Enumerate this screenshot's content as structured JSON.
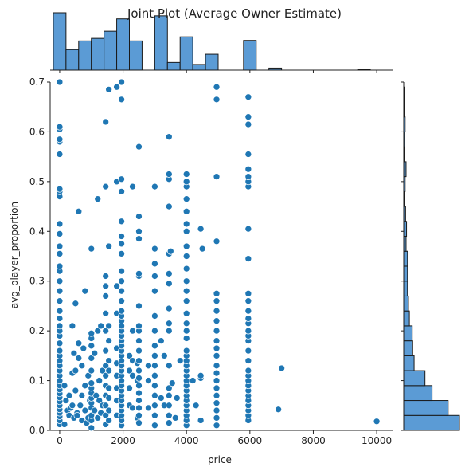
{
  "chart_data": {
    "type": "scatter",
    "title": "Joint Plot (Average Owner Estimate)",
    "xlabel": "price",
    "ylabel": "avg_player_proportion",
    "xlim": [
      -300,
      10500
    ],
    "ylim": [
      0,
      0.7
    ],
    "xticks": [
      0,
      2000,
      4000,
      6000,
      8000,
      10000
    ],
    "yticks": [
      0.0,
      0.1,
      0.2,
      0.3,
      0.4,
      0.5,
      0.6,
      0.7
    ],
    "xtick_labels": [
      "0",
      "2000",
      "4000",
      "6000",
      "8000",
      "10000"
    ],
    "ytick_labels": [
      "0.0",
      "0.1",
      "0.2",
      "0.3",
      "0.4",
      "0.5",
      "0.6",
      "0.7"
    ],
    "grid": false,
    "colors": {
      "points": "#1f77b4",
      "hist": "#5b9bd5",
      "hist_edge": "#1a1a1a"
    },
    "points": [
      [
        0,
        0.012
      ],
      [
        0,
        0.02
      ],
      [
        0,
        0.028
      ],
      [
        0,
        0.035
      ],
      [
        0,
        0.042
      ],
      [
        0,
        0.05
      ],
      [
        0,
        0.058
      ],
      [
        0,
        0.066
      ],
      [
        0,
        0.074
      ],
      [
        0,
        0.082
      ],
      [
        0,
        0.09
      ],
      [
        0,
        0.1
      ],
      [
        0,
        0.11
      ],
      [
        0,
        0.12
      ],
      [
        0,
        0.13
      ],
      [
        0,
        0.14
      ],
      [
        0,
        0.15
      ],
      [
        0,
        0.16
      ],
      [
        0,
        0.175
      ],
      [
        0,
        0.19
      ],
      [
        0,
        0.2
      ],
      [
        0,
        0.21
      ],
      [
        0,
        0.225
      ],
      [
        0,
        0.24
      ],
      [
        0,
        0.26
      ],
      [
        0,
        0.28
      ],
      [
        0,
        0.3
      ],
      [
        0,
        0.32
      ],
      [
        0,
        0.33
      ],
      [
        0,
        0.355
      ],
      [
        0,
        0.37
      ],
      [
        0,
        0.395
      ],
      [
        0,
        0.415
      ],
      [
        0,
        0.47
      ],
      [
        0,
        0.48
      ],
      [
        0,
        0.485
      ],
      [
        0,
        0.555
      ],
      [
        0,
        0.58
      ],
      [
        0,
        0.585
      ],
      [
        0,
        0.605
      ],
      [
        0,
        0.61
      ],
      [
        0,
        0.7
      ],
      [
        150,
        0.012
      ],
      [
        150,
        0.09
      ],
      [
        200,
        0.06
      ],
      [
        250,
        0.04
      ],
      [
        300,
        0.03
      ],
      [
        300,
        0.07
      ],
      [
        350,
        0.045
      ],
      [
        400,
        0.21
      ],
      [
        400,
        0.115
      ],
      [
        400,
        0.05
      ],
      [
        450,
        0.025
      ],
      [
        450,
        0.155
      ],
      [
        500,
        0.12
      ],
      [
        500,
        0.255
      ],
      [
        500,
        0.08
      ],
      [
        550,
        0.035
      ],
      [
        550,
        0.03
      ],
      [
        600,
        0.44
      ],
      [
        600,
        0.145
      ],
      [
        600,
        0.175
      ],
      [
        650,
        0.05
      ],
      [
        700,
        0.07
      ],
      [
        700,
        0.13
      ],
      [
        700,
        0.02
      ],
      [
        750,
        0.165
      ],
      [
        800,
        0.28
      ],
      [
        800,
        0.09
      ],
      [
        800,
        0.04
      ],
      [
        850,
        0.015
      ],
      [
        900,
        0.025
      ],
      [
        900,
        0.11
      ],
      [
        950,
        0.06
      ],
      [
        1000,
        0.005
      ],
      [
        1000,
        0.02
      ],
      [
        1000,
        0.03
      ],
      [
        1000,
        0.045
      ],
      [
        1000,
        0.055
      ],
      [
        1000,
        0.065
      ],
      [
        1000,
        0.075
      ],
      [
        1000,
        0.085
      ],
      [
        1000,
        0.095
      ],
      [
        1000,
        0.12
      ],
      [
        1000,
        0.145
      ],
      [
        1000,
        0.17
      ],
      [
        1000,
        0.185
      ],
      [
        1000,
        0.195
      ],
      [
        1000,
        0.365
      ],
      [
        1100,
        0.04
      ],
      [
        1100,
        0.155
      ],
      [
        1150,
        0.07
      ],
      [
        1200,
        0.025
      ],
      [
        1200,
        0.2
      ],
      [
        1200,
        0.465
      ],
      [
        1250,
        0.06
      ],
      [
        1250,
        0.1
      ],
      [
        1300,
        0.035
      ],
      [
        1300,
        0.21
      ],
      [
        1350,
        0.12
      ],
      [
        1350,
        0.05
      ],
      [
        1450,
        0.012
      ],
      [
        1450,
        0.03
      ],
      [
        1450,
        0.05
      ],
      [
        1450,
        0.07
      ],
      [
        1450,
        0.09
      ],
      [
        1450,
        0.11
      ],
      [
        1450,
        0.13
      ],
      [
        1450,
        0.16
      ],
      [
        1450,
        0.2
      ],
      [
        1450,
        0.235
      ],
      [
        1450,
        0.27
      ],
      [
        1450,
        0.29
      ],
      [
        1450,
        0.31
      ],
      [
        1450,
        0.49
      ],
      [
        1450,
        0.62
      ],
      [
        1550,
        0.02
      ],
      [
        1550,
        0.04
      ],
      [
        1550,
        0.065
      ],
      [
        1550,
        0.085
      ],
      [
        1550,
        0.12
      ],
      [
        1550,
        0.14
      ],
      [
        1550,
        0.18
      ],
      [
        1550,
        0.21
      ],
      [
        1550,
        0.37
      ],
      [
        1550,
        0.685
      ],
      [
        1800,
        0.03
      ],
      [
        1800,
        0.06
      ],
      [
        1800,
        0.085
      ],
      [
        1800,
        0.11
      ],
      [
        1800,
        0.135
      ],
      [
        1800,
        0.165
      ],
      [
        1800,
        0.235
      ],
      [
        1800,
        0.29
      ],
      [
        1800,
        0.5
      ],
      [
        1800,
        0.69
      ],
      [
        1950,
        0.01
      ],
      [
        1950,
        0.02
      ],
      [
        1950,
        0.03
      ],
      [
        1950,
        0.04
      ],
      [
        1950,
        0.05
      ],
      [
        1950,
        0.06
      ],
      [
        1950,
        0.07
      ],
      [
        1950,
        0.08
      ],
      [
        1950,
        0.09
      ],
      [
        1950,
        0.1
      ],
      [
        1950,
        0.11
      ],
      [
        1950,
        0.12
      ],
      [
        1950,
        0.13
      ],
      [
        1950,
        0.14
      ],
      [
        1950,
        0.15
      ],
      [
        1950,
        0.16
      ],
      [
        1950,
        0.17
      ],
      [
        1950,
        0.18
      ],
      [
        1950,
        0.19
      ],
      [
        1950,
        0.2
      ],
      [
        1950,
        0.21
      ],
      [
        1950,
        0.22
      ],
      [
        1950,
        0.23
      ],
      [
        1950,
        0.24
      ],
      [
        1950,
        0.26
      ],
      [
        1950,
        0.28
      ],
      [
        1950,
        0.3
      ],
      [
        1950,
        0.32
      ],
      [
        1950,
        0.355
      ],
      [
        1950,
        0.375
      ],
      [
        1950,
        0.39
      ],
      [
        1950,
        0.42
      ],
      [
        1950,
        0.48
      ],
      [
        1950,
        0.505
      ],
      [
        1950,
        0.665
      ],
      [
        1950,
        0.7
      ],
      [
        2200,
        0.05
      ],
      [
        2200,
        0.085
      ],
      [
        2200,
        0.12
      ],
      [
        2200,
        0.15
      ],
      [
        2300,
        0.045
      ],
      [
        2300,
        0.11
      ],
      [
        2300,
        0.14
      ],
      [
        2300,
        0.2
      ],
      [
        2300,
        0.49
      ],
      [
        2450,
        0.1
      ],
      [
        2450,
        0.135
      ],
      [
        2450,
        0.025
      ],
      [
        2500,
        0.015
      ],
      [
        2500,
        0.03
      ],
      [
        2500,
        0.045
      ],
      [
        2500,
        0.06
      ],
      [
        2500,
        0.075
      ],
      [
        2500,
        0.09
      ],
      [
        2500,
        0.105
      ],
      [
        2500,
        0.12
      ],
      [
        2500,
        0.14
      ],
      [
        2500,
        0.16
      ],
      [
        2500,
        0.18
      ],
      [
        2500,
        0.2
      ],
      [
        2500,
        0.21
      ],
      [
        2500,
        0.25
      ],
      [
        2500,
        0.31
      ],
      [
        2500,
        0.315
      ],
      [
        2500,
        0.385
      ],
      [
        2500,
        0.4
      ],
      [
        2500,
        0.43
      ],
      [
        2500,
        0.57
      ],
      [
        2800,
        0.045
      ],
      [
        2800,
        0.1
      ],
      [
        2800,
        0.13
      ],
      [
        3000,
        0.01
      ],
      [
        3000,
        0.03
      ],
      [
        3000,
        0.05
      ],
      [
        3000,
        0.07
      ],
      [
        3000,
        0.09
      ],
      [
        3000,
        0.11
      ],
      [
        3000,
        0.13
      ],
      [
        3000,
        0.15
      ],
      [
        3000,
        0.17
      ],
      [
        3000,
        0.2
      ],
      [
        3000,
        0.23
      ],
      [
        3000,
        0.28
      ],
      [
        3000,
        0.31
      ],
      [
        3000,
        0.335
      ],
      [
        3000,
        0.365
      ],
      [
        3000,
        0.49
      ],
      [
        3200,
        0.065
      ],
      [
        3200,
        0.18
      ],
      [
        3300,
        0.05
      ],
      [
        3300,
        0.15
      ],
      [
        3450,
        0.015
      ],
      [
        3450,
        0.03
      ],
      [
        3450,
        0.05
      ],
      [
        3450,
        0.07
      ],
      [
        3450,
        0.085
      ],
      [
        3450,
        0.13
      ],
      [
        3450,
        0.2
      ],
      [
        3450,
        0.215
      ],
      [
        3450,
        0.245
      ],
      [
        3450,
        0.295
      ],
      [
        3450,
        0.315
      ],
      [
        3450,
        0.355
      ],
      [
        3450,
        0.45
      ],
      [
        3450,
        0.505
      ],
      [
        3450,
        0.515
      ],
      [
        3450,
        0.59
      ],
      [
        3500,
        0.36
      ],
      [
        3550,
        0.095
      ],
      [
        3650,
        0.025
      ],
      [
        3700,
        0.065
      ],
      [
        3800,
        0.14
      ],
      [
        4000,
        0.01
      ],
      [
        4000,
        0.02
      ],
      [
        4000,
        0.03
      ],
      [
        4000,
        0.04
      ],
      [
        4000,
        0.05
      ],
      [
        4000,
        0.06
      ],
      [
        4000,
        0.07
      ],
      [
        4000,
        0.08
      ],
      [
        4000,
        0.09
      ],
      [
        4000,
        0.1
      ],
      [
        4000,
        0.11
      ],
      [
        4000,
        0.12
      ],
      [
        4000,
        0.13
      ],
      [
        4000,
        0.14
      ],
      [
        4000,
        0.15
      ],
      [
        4000,
        0.16
      ],
      [
        4000,
        0.185
      ],
      [
        4000,
        0.2
      ],
      [
        4000,
        0.215
      ],
      [
        4000,
        0.235
      ],
      [
        4000,
        0.26
      ],
      [
        4000,
        0.28
      ],
      [
        4000,
        0.3
      ],
      [
        4000,
        0.325
      ],
      [
        4000,
        0.35
      ],
      [
        4000,
        0.37
      ],
      [
        4000,
        0.4
      ],
      [
        4000,
        0.415
      ],
      [
        4000,
        0.44
      ],
      [
        4000,
        0.465
      ],
      [
        4000,
        0.49
      ],
      [
        4000,
        0.5
      ],
      [
        4000,
        0.515
      ],
      [
        4200,
        0.1
      ],
      [
        4300,
        0.05
      ],
      [
        4450,
        0.02
      ],
      [
        4450,
        0.105
      ],
      [
        4450,
        0.11
      ],
      [
        4450,
        0.405
      ],
      [
        4500,
        0.365
      ],
      [
        4950,
        0.01
      ],
      [
        4950,
        0.025
      ],
      [
        4950,
        0.04
      ],
      [
        4950,
        0.055
      ],
      [
        4950,
        0.07
      ],
      [
        4950,
        0.085
      ],
      [
        4950,
        0.1
      ],
      [
        4950,
        0.115
      ],
      [
        4950,
        0.13
      ],
      [
        4950,
        0.15
      ],
      [
        4950,
        0.165
      ],
      [
        4950,
        0.18
      ],
      [
        4950,
        0.2
      ],
      [
        4950,
        0.22
      ],
      [
        4950,
        0.24
      ],
      [
        4950,
        0.26
      ],
      [
        4950,
        0.275
      ],
      [
        4950,
        0.38
      ],
      [
        4950,
        0.51
      ],
      [
        4950,
        0.665
      ],
      [
        4950,
        0.69
      ],
      [
        5950,
        0.02
      ],
      [
        5950,
        0.03
      ],
      [
        5950,
        0.04
      ],
      [
        5950,
        0.05
      ],
      [
        5950,
        0.06
      ],
      [
        5950,
        0.07
      ],
      [
        5950,
        0.08
      ],
      [
        5950,
        0.09
      ],
      [
        5950,
        0.1
      ],
      [
        5950,
        0.11
      ],
      [
        5950,
        0.12
      ],
      [
        5950,
        0.14
      ],
      [
        5950,
        0.16
      ],
      [
        5950,
        0.18
      ],
      [
        5950,
        0.19
      ],
      [
        5950,
        0.2
      ],
      [
        5950,
        0.215
      ],
      [
        5950,
        0.225
      ],
      [
        5950,
        0.24
      ],
      [
        5950,
        0.26
      ],
      [
        5950,
        0.275
      ],
      [
        5950,
        0.345
      ],
      [
        5950,
        0.405
      ],
      [
        5950,
        0.49
      ],
      [
        5950,
        0.5
      ],
      [
        5950,
        0.51
      ],
      [
        5950,
        0.525
      ],
      [
        5950,
        0.555
      ],
      [
        5950,
        0.615
      ],
      [
        5950,
        0.63
      ],
      [
        5950,
        0.67
      ],
      [
        6900,
        0.042
      ],
      [
        7000,
        0.125
      ],
      [
        10000,
        0.018
      ]
    ],
    "marginal_x": {
      "bin_edges": [
        0,
        400,
        800,
        1200,
        1600,
        2000,
        2400,
        2800,
        3200,
        3600,
        4000,
        4400,
        4800,
        5200,
        5600,
        6000,
        6400,
        6800,
        7200,
        7600,
        8000,
        8400,
        8800,
        9200,
        9600,
        10000
      ],
      "counts": [
        112,
        40,
        57,
        62,
        76,
        100,
        57,
        0,
        106,
        15,
        65,
        11,
        31,
        0,
        0,
        58,
        0,
        4,
        0,
        0,
        0,
        0,
        0,
        0,
        1
      ]
    },
    "marginal_y": {
      "bin_edges": [
        0,
        0.03,
        0.06,
        0.09,
        0.12,
        0.15,
        0.18,
        0.21,
        0.24,
        0.27,
        0.3,
        0.33,
        0.36,
        0.39,
        0.42,
        0.45,
        0.48,
        0.51,
        0.54,
        0.57,
        0.6,
        0.63,
        0.66,
        0.69
      ],
      "counts": [
        118,
        94,
        60,
        45,
        22,
        19,
        18,
        12,
        10,
        8,
        8,
        8,
        5,
        6,
        4,
        1,
        3,
        5,
        1,
        2,
        3,
        1,
        1
      ]
    }
  }
}
